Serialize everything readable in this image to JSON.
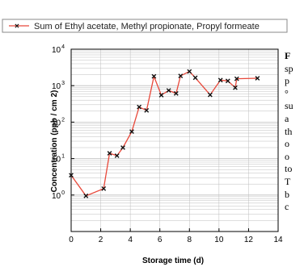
{
  "chart_data": {
    "type": "line",
    "legend": {
      "label": "Sum of Ethyl acetate, Methyl propionate, Propyl formeate",
      "placement": "top"
    },
    "xlabel": "Storage time (d)",
    "ylabel": "Concentration (ppb / cm 2)",
    "xlim": [
      0,
      14
    ],
    "ylim_exponent": [
      -1,
      4
    ],
    "y_scale": "log",
    "x_ticks": [
      "0",
      "2",
      "4",
      "6",
      "8",
      "10",
      "12",
      "14"
    ],
    "y_ticks": [
      {
        "base": "10",
        "exp": "4"
      },
      {
        "base": "10",
        "exp": "3"
      },
      {
        "base": "10",
        "exp": "2"
      },
      {
        "base": "10",
        "exp": "1"
      },
      {
        "base": "10",
        "exp": "0"
      }
    ],
    "grid": true,
    "series": [
      {
        "x": [
          0,
          1,
          2.2,
          2.6,
          3.1,
          3.5,
          4.1,
          4.6,
          5.1,
          5.6,
          6.1,
          6.6,
          7.1,
          7.4,
          8.0,
          8.4,
          9.4,
          10.1,
          10.6,
          11.1,
          11.2,
          12.6
        ],
        "y": [
          3.5,
          0.95,
          1.5,
          14,
          12,
          20,
          55,
          260,
          210,
          1800,
          550,
          740,
          610,
          1850,
          2450,
          1650,
          560,
          1420,
          1350,
          880,
          1550,
          1600
        ]
      }
    ],
    "colors": {
      "line": "#e8483a",
      "marker": "#111111",
      "grid": "#bdbdbd",
      "legend_border": "#888888"
    }
  },
  "caption": {
    "lines": [
      "F",
      "sp",
      "p",
      "°",
      "su",
      "a",
      "th",
      "o",
      "o",
      "to",
      "T",
      "b",
      "c"
    ]
  }
}
